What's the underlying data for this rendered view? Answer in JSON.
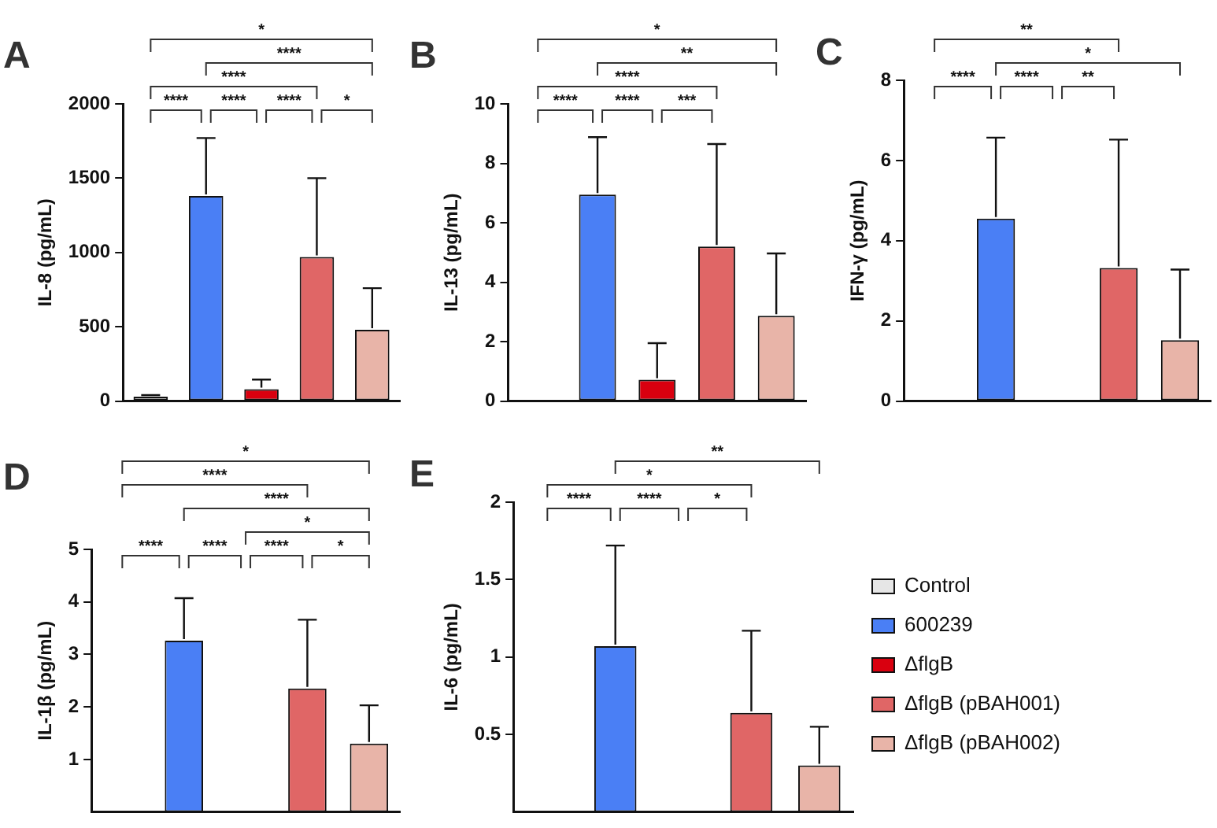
{
  "chart_data": [
    {
      "type": "bar",
      "title": "A",
      "ylabel": "IL-8 (pg/mL)",
      "categories": [
        null
      ],
      "series": [
        {
          "color": "#e6e6e6",
          "values": [
            30
          ],
          "errors": [
            10
          ]
        },
        {
          "color": "#4a7ff5",
          "values": [
            1380
          ],
          "errors": [
            390
          ]
        },
        {
          "color": "#d9000f",
          "values": [
            80
          ],
          "errors": [
            65
          ]
        },
        {
          "color": "#e06666",
          "values": [
            970
          ],
          "errors": [
            530
          ]
        },
        {
          "color": "#e8b4a8",
          "values": [
            480
          ],
          "errors": [
            280
          ]
        }
      ],
      "ylim": [
        0,
        2000
      ],
      "yticks": [
        0,
        500,
        1000,
        1500,
        2000
      ],
      "tick_labels": "y",
      "grid": false,
      "annotations": [
        "****",
        "****",
        "****",
        "*",
        "****",
        "****",
        "*"
      ]
    },
    {
      "type": "bar",
      "title": "B",
      "ylabel": "IL-13 (pg/mL)",
      "categories": [
        null
      ],
      "series": [
        {
          "color": "#e6e6e6",
          "values": [
            0
          ]
        },
        {
          "color": "#4a7ff5",
          "values": [
            6.95
          ],
          "errors": [
            1.93
          ]
        },
        {
          "color": "#d9000f",
          "values": [
            0.72
          ],
          "errors": [
            1.23
          ]
        },
        {
          "color": "#e06666",
          "values": [
            5.2
          ],
          "errors": [
            3.45
          ]
        },
        {
          "color": "#e8b4a8",
          "values": [
            2.87
          ],
          "errors": [
            2.1
          ]
        }
      ],
      "ylim": [
        0,
        10
      ],
      "yticks": [
        0,
        2,
        4,
        6,
        8,
        10
      ],
      "tick_labels": "y",
      "grid": false,
      "annotations": [
        "****",
        "****",
        "***",
        "****",
        "**",
        "*"
      ]
    },
    {
      "type": "bar",
      "title": "C",
      "ylabel": "IFN-γ (pg/mL)",
      "categories": [
        null
      ],
      "series": [
        {
          "color": "#e6e6e6",
          "values": [
            0
          ]
        },
        {
          "color": "#4a7ff5",
          "values": [
            4.55
          ],
          "errors": [
            2.02
          ]
        },
        {
          "color": "#d9000f",
          "values": [
            0
          ]
        },
        {
          "color": "#e06666",
          "values": [
            3.32
          ],
          "errors": [
            3.2
          ]
        },
        {
          "color": "#e8b4a8",
          "values": [
            1.52
          ],
          "errors": [
            1.76
          ]
        }
      ],
      "ylim": [
        0,
        8
      ],
      "yticks": [
        0,
        2,
        4,
        6,
        8
      ],
      "tick_labels": "y",
      "grid": false,
      "annotations": [
        "****",
        "****",
        "**",
        "*",
        "**"
      ]
    },
    {
      "type": "bar",
      "title": "D",
      "ylabel": "IL-1β (pg/mL)",
      "categories": [
        null
      ],
      "series": [
        {
          "color": "#e6e6e6",
          "values": [
            0
          ]
        },
        {
          "color": "#4a7ff5",
          "values": [
            3.26
          ],
          "errors": [
            0.81
          ]
        },
        {
          "color": "#d9000f",
          "values": [
            0
          ]
        },
        {
          "color": "#e06666",
          "values": [
            2.35
          ],
          "errors": [
            1.31
          ]
        },
        {
          "color": "#e8b4a8",
          "values": [
            1.3
          ],
          "errors": [
            0.73
          ]
        }
      ],
      "ylim": [
        0,
        5
      ],
      "yticks": [
        1,
        2,
        3,
        4,
        5
      ],
      "tick_labels": "y",
      "grid": false,
      "annotations": [
        "****",
        "****",
        "****",
        "*",
        "*",
        "****",
        "****",
        "*"
      ]
    },
    {
      "type": "bar",
      "title": "E",
      "ylabel": "IL-6 (pg/mL)",
      "categories": [
        null
      ],
      "series": [
        {
          "name": "Control",
          "color": "#e6e6e6",
          "values": [
            0
          ]
        },
        {
          "name": "600239",
          "color": "#4a7ff5",
          "values": [
            1.07
          ],
          "errors": [
            0.65
          ]
        },
        {
          "name": "ΔflgB",
          "color": "#d9000f",
          "values": [
            0
          ]
        },
        {
          "name": "ΔflgB (pBAH001)",
          "color": "#e06666",
          "values": [
            0.64
          ],
          "errors": [
            0.53
          ]
        },
        {
          "name": "ΔflgB (pBAH002)",
          "color": "#e8b4a8",
          "values": [
            0.3
          ],
          "errors": [
            0.25
          ]
        }
      ],
      "ylim": [
        0,
        2
      ],
      "yticks": [
        0.5,
        1.0,
        1.5,
        2.0
      ],
      "tick_labels": "y",
      "grid": false,
      "legend": "right",
      "annotations": [
        "****",
        "****",
        "*",
        "*",
        "**"
      ]
    }
  ]
}
